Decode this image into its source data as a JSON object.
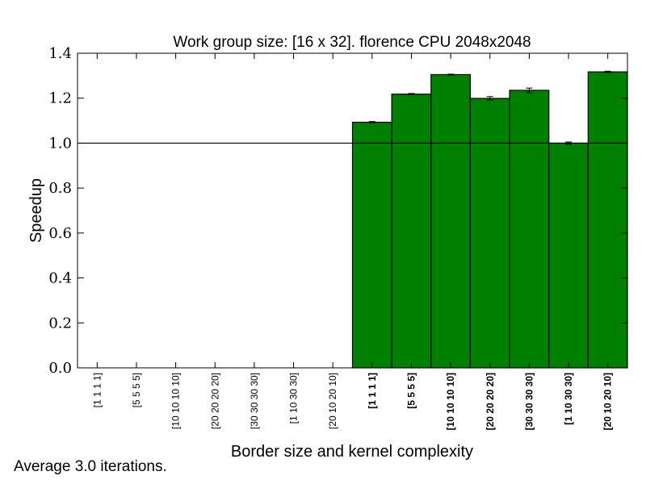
{
  "chart_data": {
    "type": "bar",
    "title": "Work group size: [16 x 32]. florence CPU 2048x2048",
    "xlabel": "Border size and kernel complexity",
    "ylabel": "Speedup",
    "ylim": [
      0.0,
      1.4
    ],
    "yticks": [
      "0.0",
      "0.2",
      "0.4",
      "0.6",
      "0.8",
      "1.0",
      "1.2",
      "1.4"
    ],
    "reference_line": 1.0,
    "categories": [
      "[1 1 1 1]",
      "[5 5 5 5]",
      "[10 10 10 10]",
      "[20 20 20 20]",
      "[30 30 30 30]",
      "[1 10 30 30]",
      "[20 10 20 10]",
      "[1 1 1 1]",
      "[5 5 5 5]",
      "[10 10 10 10]",
      "[20 20 20 20]",
      "[30 30 30 30]",
      "[1 10 30 30]",
      "[20 10 20 10]"
    ],
    "bold_categories": [
      false,
      false,
      false,
      false,
      false,
      false,
      false,
      true,
      true,
      true,
      true,
      true,
      true,
      true
    ],
    "values": [
      0,
      0,
      0,
      0,
      0,
      0,
      0,
      1.093,
      1.218,
      1.305,
      1.199,
      1.235,
      1.0,
      1.317
    ],
    "errors": [
      0,
      0,
      0,
      0,
      0,
      0,
      0,
      0.003,
      0.003,
      0.002,
      0.008,
      0.01,
      0.005,
      0.003
    ],
    "bar_color": "#008000",
    "grid": false
  },
  "footnote": "Average 3.0 iterations."
}
